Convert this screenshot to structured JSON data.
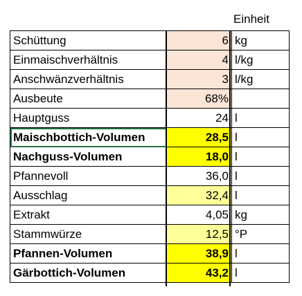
{
  "header": {
    "unit_label": "Einheit"
  },
  "colors": {
    "input": "#FBE5D6",
    "calc": "#FFFF99",
    "result": "#FFFF00",
    "plain": "#FFFFFF"
  },
  "rows": [
    {
      "label": "Schüttung",
      "value": "6",
      "unit": "kg",
      "fill": "input",
      "bold": false
    },
    {
      "label": "Einmaischverhältnis",
      "value": "4",
      "unit": "l/kg",
      "fill": "input",
      "bold": false
    },
    {
      "label": "Anschwänzverhältnis",
      "value": "3",
      "unit": "l/kg",
      "fill": "input",
      "bold": false
    },
    {
      "label": "Ausbeute",
      "value": "68%",
      "unit": "",
      "fill": "input",
      "bold": false
    },
    {
      "label": "Hauptguss",
      "value": "24",
      "unit": "l",
      "fill": "plain",
      "bold": false
    },
    {
      "label": "Maischbottich-Volumen",
      "value": "28,5",
      "unit": "l",
      "fill": "result",
      "bold": true,
      "selected": true
    },
    {
      "label": "Nachguss-Volumen",
      "value": "18,0",
      "unit": "l",
      "fill": "result",
      "bold": true
    },
    {
      "label": "Pfannevoll",
      "value": "36,0",
      "unit": "l",
      "fill": "plain",
      "bold": false
    },
    {
      "label": "Ausschlag",
      "value": "32,4",
      "unit": "l",
      "fill": "calc",
      "bold": false
    },
    {
      "label": "Extrakt",
      "value": "4,05",
      "unit": "kg",
      "fill": "plain",
      "bold": false
    },
    {
      "label": "Stammwürze",
      "value": "12,5",
      "unit": "°P",
      "fill": "calc",
      "bold": false
    },
    {
      "label": "Pfannen-Volumen",
      "value": "38,9",
      "unit": "l",
      "fill": "result",
      "bold": true
    },
    {
      "label": "Gärbottich-Volumen",
      "value": "43,2",
      "unit": "l",
      "fill": "result",
      "bold": true
    }
  ]
}
